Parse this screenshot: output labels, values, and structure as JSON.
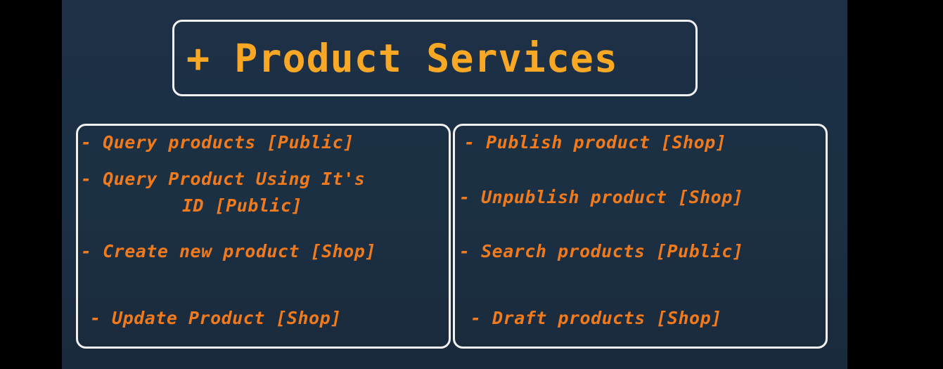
{
  "title": "+ Product Services",
  "left_items": [
    "- Query products [Public]",
    "- Query Product Using It's",
    "ID [Public]",
    "- Create new product [Shop]",
    "- Update Product [Shop]"
  ],
  "right_items": [
    "- Publish product [Shop]",
    "- Unpublish product [Shop]",
    "- Search products [Public]",
    "- Draft products [Shop]"
  ],
  "colors": {
    "background": "#1c3044",
    "title": "#f9a825",
    "items": "#f07a1c",
    "border": "#f1f1f1"
  }
}
